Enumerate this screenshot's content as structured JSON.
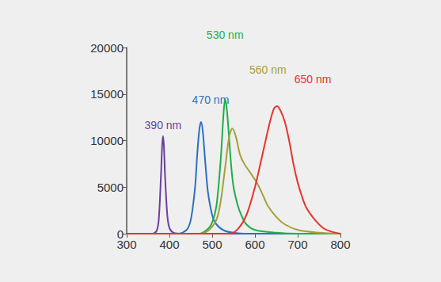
{
  "chart_data": {
    "type": "line",
    "xlim": [
      300,
      800
    ],
    "xticks": [
      300,
      400,
      500,
      600,
      700,
      800
    ],
    "ylim": [
      0,
      20000
    ],
    "yticks": [
      0,
      5000,
      10000,
      15000,
      20000
    ],
    "grid": false,
    "legend": false,
    "data_labels": false,
    "series": [
      {
        "name": "390 nm",
        "color": "#6a3fa0",
        "x": [
          300,
          360,
          370,
          375,
          380,
          383,
          385,
          387,
          390,
          395,
          400,
          410,
          430,
          800
        ],
        "values": [
          0,
          0,
          300,
          1500,
          6000,
          9500,
          10500,
          9500,
          6000,
          2000,
          600,
          100,
          0,
          0
        ]
      },
      {
        "name": "470 nm",
        "color": "#2e6fc0",
        "x": [
          300,
          420,
          440,
          450,
          460,
          465,
          470,
          474,
          478,
          485,
          490,
          500,
          510,
          530,
          560,
          600,
          800
        ],
        "values": [
          0,
          0,
          400,
          1500,
          5000,
          8500,
          11200,
          12000,
          11000,
          7000,
          4500,
          2000,
          1000,
          300,
          50,
          0,
          0
        ]
      },
      {
        "name": "530 nm",
        "color": "#1fae4a",
        "x": [
          300,
          470,
          490,
          500,
          510,
          520,
          526,
          530,
          534,
          540,
          545,
          550,
          560,
          570,
          580,
          600,
          650,
          700,
          800
        ],
        "values": [
          0,
          0,
          500,
          1200,
          3000,
          8000,
          12500,
          14400,
          13500,
          10000,
          7000,
          5000,
          3000,
          1800,
          1000,
          400,
          100,
          0,
          0
        ]
      },
      {
        "name": "560 nm",
        "color": "#a5a03a",
        "x": [
          300,
          470,
          490,
          510,
          520,
          530,
          540,
          547,
          555,
          565,
          575,
          590,
          600,
          610,
          620,
          630,
          650,
          670,
          700,
          750,
          800
        ],
        "values": [
          0,
          0,
          300,
          1500,
          3500,
          7000,
          10500,
          11300,
          10500,
          8500,
          7500,
          6500,
          5800,
          5000,
          4000,
          3000,
          1800,
          1000,
          400,
          100,
          0
        ]
      },
      {
        "name": "650 nm",
        "color": "#e8332e",
        "x": [
          300,
          540,
          560,
          580,
          600,
          620,
          635,
          645,
          652,
          660,
          670,
          680,
          690,
          700,
          710,
          720,
          740,
          760,
          780,
          800
        ],
        "values": [
          0,
          0,
          500,
          2000,
          5000,
          9000,
          12000,
          13500,
          13700,
          13200,
          12000,
          10000,
          7500,
          5500,
          4000,
          2800,
          1500,
          600,
          200,
          0
        ]
      }
    ]
  }
}
